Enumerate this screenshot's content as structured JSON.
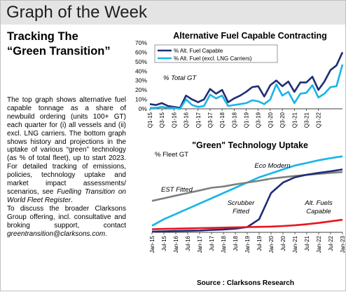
{
  "header": {
    "title": "Graph of the Week"
  },
  "subtitle": {
    "line1": "Tracking The",
    "line2": "“Green Transition”"
  },
  "description": {
    "p1": "The top graph shows alternative fuel capable tonnage as a share of newbuild ordering (units 100+ GT) each quarter for (i) all vessels and (ii) excl. LNG carriers. The bottom graph shows history and projections in the uptake of various “green” technology (as % of total fleet), up to start 2023. For detailed tracking of emissions, policies, technology uptake and market impact assessments/ scenarios, see ",
    "p1_em": "Fuelling Transition on World Fleet Register",
    "p1_end": ".",
    "p2": "To discuss the broader Clarksons Group offering, incl. consultative and broking support, contact ",
    "p2_em": "greentransition@clarksons.com",
    "p2_end": "."
  },
  "source": "Source : Clarksons Research",
  "colors": {
    "dark_blue": "#1f2d72",
    "light_blue": "#17b4e8",
    "gray": "#7f7f7f",
    "red": "#e8141e"
  },
  "chart_data": [
    {
      "type": "line",
      "title": "Alternative Fuel Capable Contracting",
      "ylabel": "% Total GT",
      "ylim": [
        0,
        70
      ],
      "yticks": [
        "0%",
        "10%",
        "20%",
        "30%",
        "40%",
        "50%",
        "60%",
        "70%"
      ],
      "xtick_labels": [
        "Q1-15",
        "Q3-15",
        "Q1-16",
        "Q3-16",
        "Q1-17",
        "Q3-17",
        "Q1-18",
        "Q3-18",
        "Q1-19",
        "Q3-19",
        "Q1-20",
        "Q3-20",
        "Q1-21",
        "Q3-21",
        "Q1-22"
      ],
      "legend": "top-left",
      "series": [
        {
          "name": "% Alt. Fuel Capable",
          "color": "#1f2d72",
          "values": [
            5,
            4,
            6,
            3,
            2,
            1,
            14,
            10,
            7,
            10,
            21,
            16,
            20,
            7,
            11,
            14,
            18,
            23,
            24,
            13,
            25,
            30,
            24,
            29,
            18,
            28,
            28,
            34,
            20,
            29,
            41,
            46,
            60
          ]
        },
        {
          "name": "% Alt. Fuel (excl. LNG Carriers)",
          "color": "#17b4e8",
          "values": [
            1,
            1,
            2,
            1,
            1,
            0,
            10,
            4,
            2,
            3,
            15,
            11,
            14,
            3,
            4,
            5,
            6,
            9,
            8,
            5,
            10,
            26,
            14,
            18,
            6,
            16,
            17,
            25,
            12,
            16,
            23,
            24,
            47
          ]
        }
      ]
    },
    {
      "type": "line",
      "title": "\"Green\" Technology Uptake",
      "ylabel": "% Fleet GT",
      "ylim": [
        0,
        30
      ],
      "x": [
        "Jan-15",
        "Jul-15",
        "Jan-16",
        "Jul-16",
        "Jan-17",
        "Jul-17",
        "Jan-18",
        "Jul-18",
        "Jan-19",
        "Jul-19",
        "Jan-20",
        "Jul-20",
        "Jan-21",
        "Jul-21",
        "Jan-22",
        "Jul-22",
        "Jan-23"
      ],
      "series": [
        {
          "name": "Eco Modern",
          "color": "#17b4e8",
          "values": [
            2.5,
            5,
            7,
            9,
            11,
            13,
            15,
            17,
            19,
            21,
            22.5,
            24,
            25.5,
            26.5,
            27.5,
            28.3,
            29
          ]
        },
        {
          "name": "EST Fitted",
          "color": "#7f7f7f",
          "values": [
            12,
            13,
            14,
            15,
            16,
            17,
            17.5,
            18.3,
            19,
            19.7,
            20.5,
            21,
            21.5,
            21.9,
            22.3,
            22.7,
            23
          ]
        },
        {
          "name": "Scrubber Fitted",
          "color": "#1f2d72",
          "values": [
            0.3,
            0.4,
            0.5,
            0.6,
            0.7,
            0.9,
            1.1,
            1.4,
            2,
            5,
            15,
            19,
            21,
            22,
            22.7,
            23.3,
            24
          ]
        },
        {
          "name": "Alt. Fuels Capable",
          "color": "#e8141e",
          "values": [
            1.2,
            1.3,
            1.4,
            1.5,
            1.6,
            1.7,
            1.8,
            1.9,
            2,
            2.1,
            2.2,
            2.4,
            2.7,
            3.1,
            3.6,
            4.2,
            4.8
          ]
        }
      ]
    }
  ]
}
